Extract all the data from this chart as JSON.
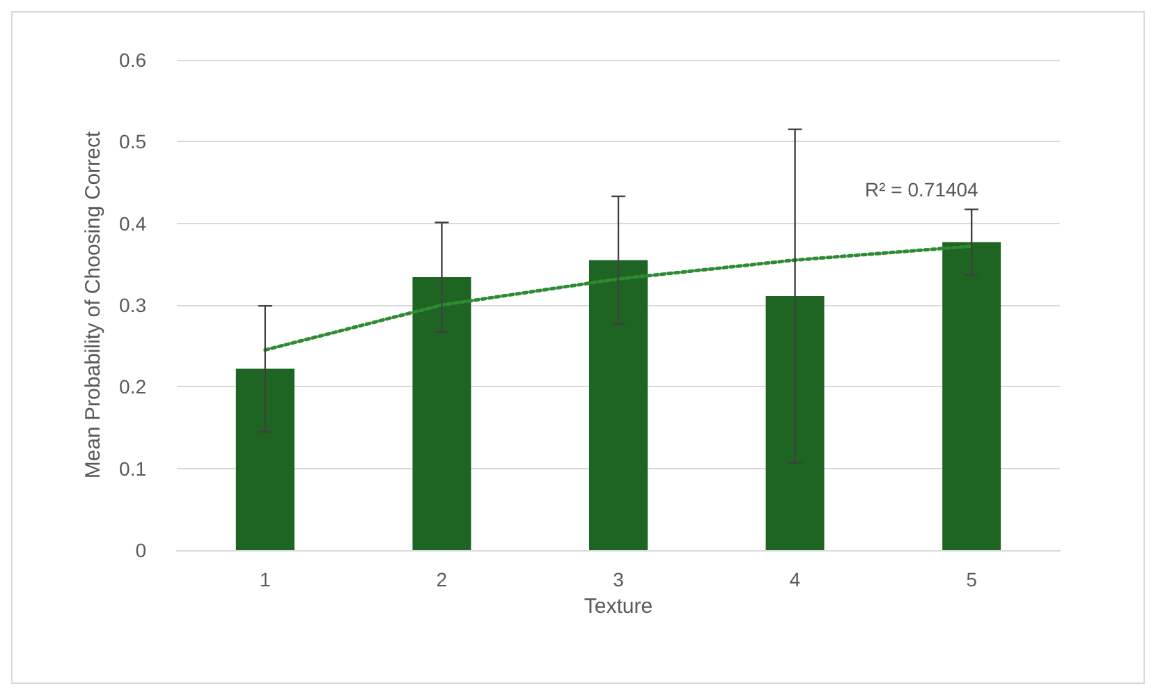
{
  "chart_data": {
    "type": "bar",
    "xlabel": "Texture",
    "ylabel": "Mean Probability of Choosing Correct",
    "x": [
      1,
      2,
      3,
      4,
      5
    ],
    "xlim": [
      0.5,
      5.5
    ],
    "xticks": [
      1,
      2,
      3,
      4,
      5
    ],
    "ylim": [
      0,
      0.6
    ],
    "yticks": [
      0,
      0.1,
      0.2,
      0.3,
      0.4,
      0.5,
      0.6
    ],
    "grid": "y",
    "series": [
      {
        "color": "#1e6423",
        "values": [
          0.222,
          0.334,
          0.355,
          0.311,
          0.377
        ],
        "errors": [
          0.077,
          0.067,
          0.078,
          0.204,
          0.04
        ]
      },
      {
        "type": "line",
        "color": "#2e8b32",
        "line_style": "dotted",
        "marker": "none",
        "x": [
          1,
          2,
          3,
          4,
          5
        ],
        "values": [
          0.245,
          0.3,
          0.332,
          0.355,
          0.372
        ]
      }
    ],
    "annotations": [
      "R² = 0.71404"
    ]
  }
}
